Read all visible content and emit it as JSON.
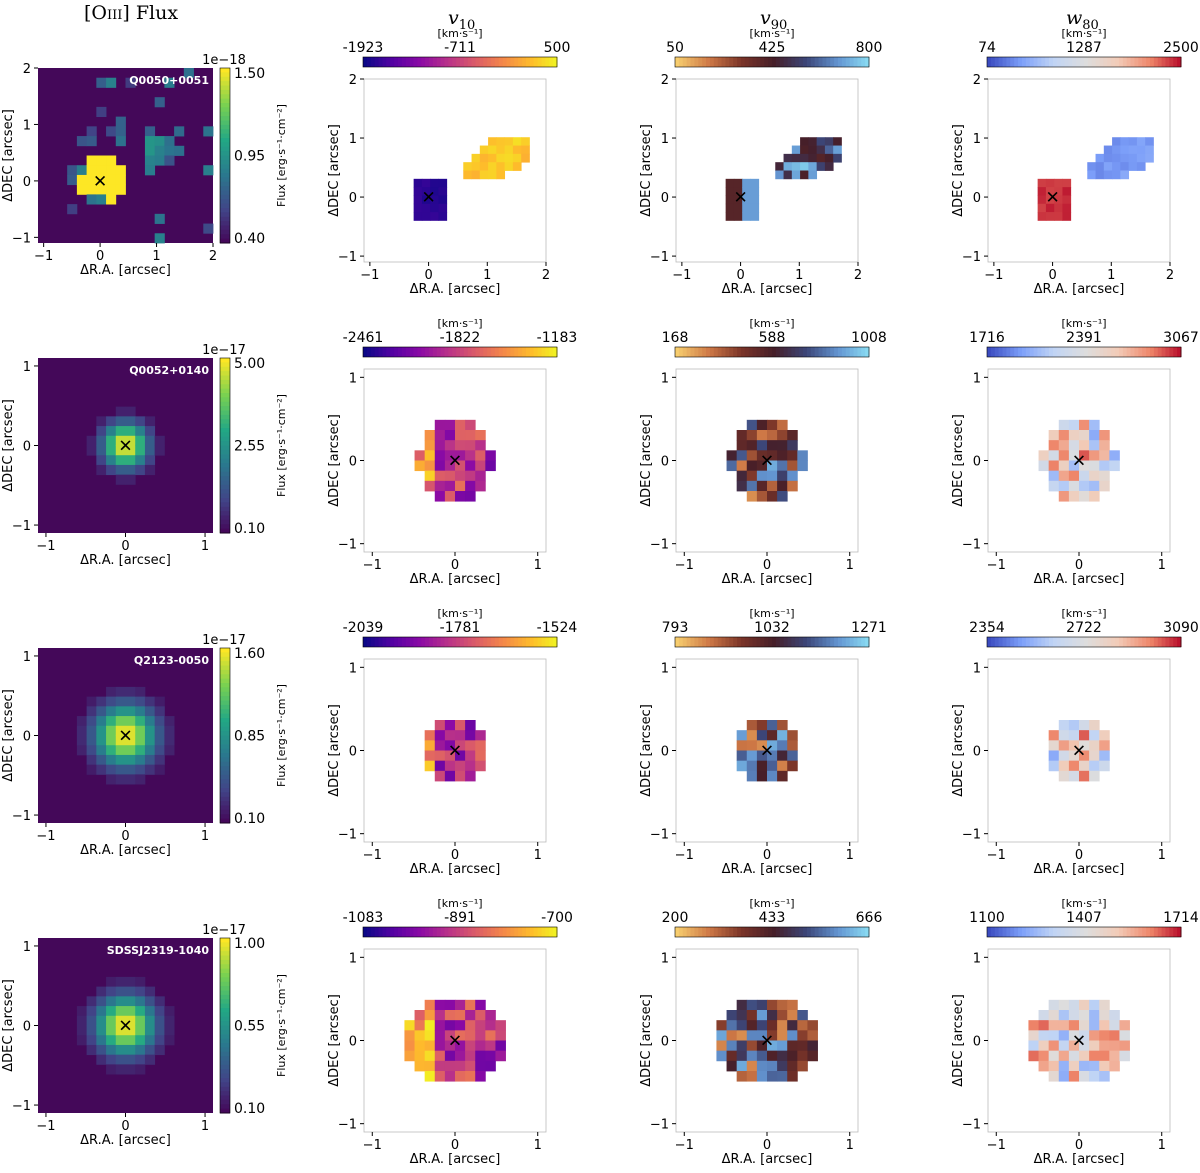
{
  "column_titles": [
    {
      "pre": "[O",
      "mid": "III",
      "post": "] Flux"
    },
    {
      "var": "v",
      "sub": "10"
    },
    {
      "var": "v",
      "sub": "90"
    },
    {
      "var": "w",
      "sub": "80"
    }
  ],
  "chart_data": [
    {
      "type": "heatmap",
      "name": "Q0050+0051",
      "panel": "flux",
      "title": "[O III] Flux",
      "xlabel": "ΔR.A. [arcsec]",
      "ylabel": "ΔDEC [arcsec]",
      "xlim": [
        -1.1,
        2.0
      ],
      "ylim": [
        -1.1,
        2.0
      ],
      "xticks": [
        "-1",
        "0",
        "1",
        "2"
      ],
      "yticks": [
        "2",
        "1",
        "0",
        "-1"
      ],
      "colorbar": {
        "label": "Flux [erg·s⁻¹·cm⁻²]",
        "exponent": "1e−18",
        "ticks": [
          "1.50",
          "0.95",
          "0.40"
        ],
        "range": [
          0.4,
          1.5
        ],
        "cmap": "viridis"
      }
    },
    {
      "type": "heatmap",
      "name": "Q0050+0051",
      "panel": "v10",
      "xlabel": "ΔR.A. [arcsec]",
      "ylabel": "ΔDEC [arcsec]",
      "xlim": [
        -1.1,
        2.0
      ],
      "ylim": [
        -1.1,
        2.0
      ],
      "xticks": [
        "-1",
        "0",
        "1",
        "2"
      ],
      "yticks": [
        "2",
        "1",
        "0",
        "-1"
      ],
      "colorbar": {
        "unit": "[km·s⁻¹]",
        "ticks": [
          "-1923",
          "-711",
          "500"
        ],
        "range": [
          -1923,
          500
        ],
        "cmap": "plasma"
      }
    },
    {
      "type": "heatmap",
      "name": "Q0050+0051",
      "panel": "v90",
      "xlabel": "ΔR.A. [arcsec]",
      "ylabel": "ΔDEC [arcsec]",
      "xlim": [
        -1.1,
        2.0
      ],
      "ylim": [
        -1.1,
        2.0
      ],
      "xticks": [
        "-1",
        "0",
        "1",
        "2"
      ],
      "yticks": [
        "2",
        "1",
        "0",
        "-1"
      ],
      "colorbar": {
        "unit": "[km·s⁻¹]",
        "ticks": [
          "50",
          "425",
          "800"
        ],
        "range": [
          50,
          800
        ],
        "cmap": "sunset"
      }
    },
    {
      "type": "heatmap",
      "name": "Q0050+0051",
      "panel": "w80",
      "xlabel": "ΔR.A. [arcsec]",
      "ylabel": "ΔDEC [arcsec]",
      "xlim": [
        -1.1,
        2.0
      ],
      "ylim": [
        -1.1,
        2.0
      ],
      "xticks": [
        "-1",
        "0",
        "1",
        "2"
      ],
      "yticks": [
        "2",
        "1",
        "0",
        "-1"
      ],
      "colorbar": {
        "unit": "[km·s⁻¹]",
        "ticks": [
          "74",
          "1287",
          "2500"
        ],
        "range": [
          74,
          2500
        ],
        "cmap": "coolwarm"
      }
    },
    {
      "type": "heatmap",
      "name": "Q0052+0140",
      "panel": "flux",
      "xlabel": "ΔR.A. [arcsec]",
      "ylabel": "ΔDEC [arcsec]",
      "xlim": [
        -1.1,
        1.1
      ],
      "ylim": [
        -1.1,
        1.1
      ],
      "xticks": [
        "-1",
        "0",
        "1"
      ],
      "yticks": [
        "1",
        "0",
        "-1"
      ],
      "colorbar": {
        "label": "Flux [erg·s⁻¹·cm⁻²]",
        "exponent": "1e−17",
        "ticks": [
          "5.00",
          "2.55",
          "0.10"
        ],
        "range": [
          0.1,
          5.0
        ],
        "cmap": "viridis"
      }
    },
    {
      "type": "heatmap",
      "name": "Q0052+0140",
      "panel": "v10",
      "xlabel": "ΔR.A. [arcsec]",
      "ylabel": "ΔDEC [arcsec]",
      "xlim": [
        -1.1,
        1.1
      ],
      "ylim": [
        -1.1,
        1.1
      ],
      "xticks": [
        "-1",
        "0",
        "1"
      ],
      "yticks": [
        "1",
        "0",
        "-1"
      ],
      "colorbar": {
        "unit": "[km·s⁻¹]",
        "ticks": [
          "-2461",
          "-1822",
          "-1183"
        ],
        "range": [
          -2461,
          -1183
        ],
        "cmap": "plasma"
      }
    },
    {
      "type": "heatmap",
      "name": "Q0052+0140",
      "panel": "v90",
      "xlabel": "ΔR.A. [arcsec]",
      "ylabel": "ΔDEC [arcsec]",
      "xlim": [
        -1.1,
        1.1
      ],
      "ylim": [
        -1.1,
        1.1
      ],
      "xticks": [
        "-1",
        "0",
        "1"
      ],
      "yticks": [
        "1",
        "0",
        "-1"
      ],
      "colorbar": {
        "unit": "[km·s⁻¹]",
        "ticks": [
          "168",
          "588",
          "1008"
        ],
        "range": [
          168,
          1008
        ],
        "cmap": "sunset"
      }
    },
    {
      "type": "heatmap",
      "name": "Q0052+0140",
      "panel": "w80",
      "xlabel": "ΔR.A. [arcsec]",
      "ylabel": "ΔDEC [arcsec]",
      "xlim": [
        -1.1,
        1.1
      ],
      "ylim": [
        -1.1,
        1.1
      ],
      "xticks": [
        "-1",
        "0",
        "1"
      ],
      "yticks": [
        "1",
        "0",
        "-1"
      ],
      "colorbar": {
        "unit": "[km·s⁻¹]",
        "ticks": [
          "1716",
          "2391",
          "3067"
        ],
        "range": [
          1716,
          3067
        ],
        "cmap": "coolwarm"
      }
    },
    {
      "type": "heatmap",
      "name": "Q2123-0050",
      "panel": "flux",
      "xlabel": "ΔR.A. [arcsec]",
      "ylabel": "ΔDEC [arcsec]",
      "xlim": [
        -1.1,
        1.1
      ],
      "ylim": [
        -1.1,
        1.1
      ],
      "xticks": [
        "-1",
        "0",
        "1"
      ],
      "yticks": [
        "1",
        "0",
        "-1"
      ],
      "colorbar": {
        "label": "Flux [erg·s⁻¹·cm⁻²]",
        "exponent": "1e−17",
        "ticks": [
          "1.60",
          "0.85",
          "0.10"
        ],
        "range": [
          0.1,
          1.6
        ],
        "cmap": "viridis"
      }
    },
    {
      "type": "heatmap",
      "name": "Q2123-0050",
      "panel": "v10",
      "xlabel": "ΔR.A. [arcsec]",
      "ylabel": "ΔDEC [arcsec]",
      "xlim": [
        -1.1,
        1.1
      ],
      "ylim": [
        -1.1,
        1.1
      ],
      "xticks": [
        "-1",
        "0",
        "1"
      ],
      "yticks": [
        "1",
        "0",
        "-1"
      ],
      "colorbar": {
        "unit": "[km·s⁻¹]",
        "ticks": [
          "-2039",
          "-1781",
          "-1524"
        ],
        "range": [
          -2039,
          -1524
        ],
        "cmap": "plasma"
      }
    },
    {
      "type": "heatmap",
      "name": "Q2123-0050",
      "panel": "v90",
      "xlabel": "ΔR.A. [arcsec]",
      "ylabel": "ΔDEC [arcsec]",
      "xlim": [
        -1.1,
        1.1
      ],
      "ylim": [
        -1.1,
        1.1
      ],
      "xticks": [
        "-1",
        "0",
        "1"
      ],
      "yticks": [
        "1",
        "0",
        "-1"
      ],
      "colorbar": {
        "unit": "[km·s⁻¹]",
        "ticks": [
          "793",
          "1032",
          "1271"
        ],
        "range": [
          793,
          1271
        ],
        "cmap": "sunset"
      }
    },
    {
      "type": "heatmap",
      "name": "Q2123-0050",
      "panel": "w80",
      "xlabel": "ΔR.A. [arcsec]",
      "ylabel": "ΔDEC [arcsec]",
      "xlim": [
        -1.1,
        1.1
      ],
      "ylim": [
        -1.1,
        1.1
      ],
      "xticks": [
        "-1",
        "0",
        "1"
      ],
      "yticks": [
        "1",
        "0",
        "-1"
      ],
      "colorbar": {
        "unit": "[km·s⁻¹]",
        "ticks": [
          "2354",
          "2722",
          "3090"
        ],
        "range": [
          2354,
          3090
        ],
        "cmap": "coolwarm"
      }
    },
    {
      "type": "heatmap",
      "name": "SDSSJ2319-1040",
      "panel": "flux",
      "xlabel": "ΔR.A. [arcsec]",
      "ylabel": "ΔDEC [arcsec]",
      "xlim": [
        -1.1,
        1.1
      ],
      "ylim": [
        -1.1,
        1.1
      ],
      "xticks": [
        "-1",
        "0",
        "1"
      ],
      "yticks": [
        "1",
        "0",
        "-1"
      ],
      "colorbar": {
        "label": "Flux [erg·s⁻¹·cm⁻²]",
        "exponent": "1e−17",
        "ticks": [
          "1.00",
          "0.55",
          "0.10"
        ],
        "range": [
          0.1,
          1.0
        ],
        "cmap": "viridis"
      }
    },
    {
      "type": "heatmap",
      "name": "SDSSJ2319-1040",
      "panel": "v10",
      "xlabel": "ΔR.A. [arcsec]",
      "ylabel": "ΔDEC [arcsec]",
      "xlim": [
        -1.1,
        1.1
      ],
      "ylim": [
        -1.1,
        1.1
      ],
      "xticks": [
        "-1",
        "0",
        "1"
      ],
      "yticks": [
        "1",
        "0",
        "-1"
      ],
      "colorbar": {
        "unit": "[km·s⁻¹]",
        "ticks": [
          "-1083",
          "-891",
          "-700"
        ],
        "range": [
          -1083,
          -700
        ],
        "cmap": "plasma"
      }
    },
    {
      "type": "heatmap",
      "name": "SDSSJ2319-1040",
      "panel": "v90",
      "xlabel": "ΔR.A. [arcsec]",
      "ylabel": "ΔDEC [arcsec]",
      "xlim": [
        -1.1,
        1.1
      ],
      "ylim": [
        -1.1,
        1.1
      ],
      "xticks": [
        "-1",
        "0",
        "1"
      ],
      "yticks": [
        "1",
        "0",
        "-1"
      ],
      "colorbar": {
        "unit": "[km·s⁻¹]",
        "ticks": [
          "200",
          "433",
          "666"
        ],
        "range": [
          200,
          666
        ],
        "cmap": "sunset"
      }
    },
    {
      "type": "heatmap",
      "name": "SDSSJ2319-1040",
      "panel": "w80",
      "xlabel": "ΔR.A. [arcsec]",
      "ylabel": "ΔDEC [arcsec]",
      "xlim": [
        -1.1,
        1.1
      ],
      "ylim": [
        -1.1,
        1.1
      ],
      "xticks": [
        "-1",
        "0",
        "1"
      ],
      "yticks": [
        "1",
        "0",
        "-1"
      ],
      "colorbar": {
        "unit": "[km·s⁻¹]",
        "ticks": [
          "1100",
          "1407",
          "1714"
        ],
        "range": [
          1100,
          1714
        ],
        "cmap": "coolwarm"
      }
    }
  ]
}
